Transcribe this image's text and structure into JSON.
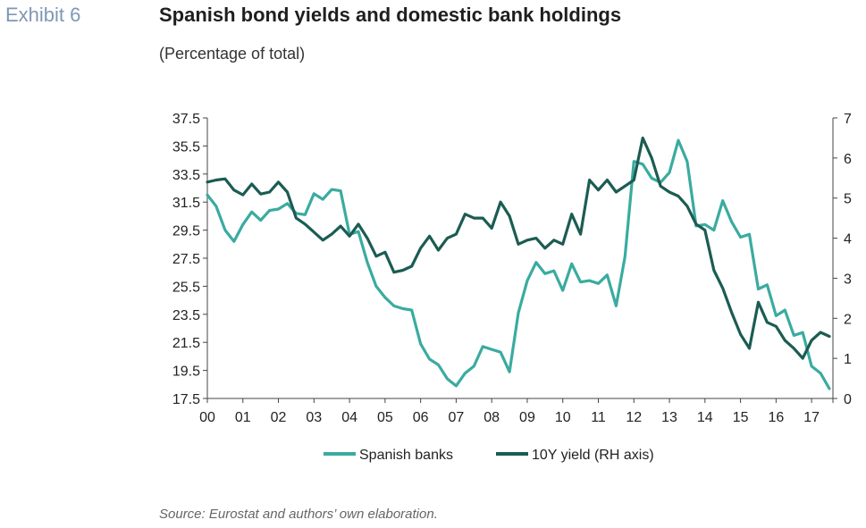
{
  "header": {
    "exhibit": "Exhibit 6",
    "title": "Spanish bond yields and domestic bank holdings",
    "subtitle": "(Percentage of total)"
  },
  "footer": {
    "source": "Source: Eurostat and authors’ own elaboration."
  },
  "chart_data": {
    "type": "line",
    "title": "Spanish bond yields and domestic bank holdings",
    "subtitle": "(Percentage of total)",
    "xlim": [
      2000,
      2017.6
    ],
    "x_ticks": [
      "00",
      "01",
      "02",
      "03",
      "04",
      "05",
      "06",
      "07",
      "08",
      "09",
      "10",
      "11",
      "12",
      "13",
      "14",
      "15",
      "16",
      "17"
    ],
    "ylim_left": [
      17.5,
      37.5
    ],
    "y_ticks_left": [
      "37.5",
      "35.5",
      "33.5",
      "31.5",
      "29.5",
      "27.5",
      "25.5",
      "23.5",
      "21.5",
      "19.5",
      "17.5"
    ],
    "ylim_right": [
      0,
      7
    ],
    "y_ticks_right": [
      "7",
      "6",
      "5",
      "4",
      "3",
      "2",
      "1",
      "0"
    ],
    "grid": false,
    "legend_position": "bottom",
    "colors": {
      "banks": "#3aaba0",
      "yield": "#1b5c53"
    },
    "series": [
      {
        "name": "Spanish banks",
        "axis": "left",
        "color": "#3aaba0",
        "x": [
          2000.0,
          2000.25,
          2000.5,
          2000.75,
          2001.0,
          2001.25,
          2001.5,
          2001.75,
          2002.0,
          2002.25,
          2002.5,
          2002.75,
          2003.0,
          2003.25,
          2003.5,
          2003.75,
          2004.0,
          2004.25,
          2004.5,
          2004.75,
          2005.0,
          2005.25,
          2005.5,
          2005.75,
          2006.0,
          2006.25,
          2006.5,
          2006.75,
          2007.0,
          2007.25,
          2007.5,
          2007.75,
          2008.0,
          2008.25,
          2008.5,
          2008.75,
          2009.0,
          2009.25,
          2009.5,
          2009.75,
          2010.0,
          2010.25,
          2010.5,
          2010.75,
          2011.0,
          2011.25,
          2011.5,
          2011.75,
          2012.0,
          2012.25,
          2012.5,
          2012.75,
          2013.0,
          2013.25,
          2013.5,
          2013.75,
          2014.0,
          2014.25,
          2014.5,
          2014.75,
          2015.0,
          2015.25,
          2015.5,
          2015.75,
          2016.0,
          2016.25,
          2016.5,
          2016.75,
          2017.0,
          2017.25,
          2017.5
        ],
        "values": [
          32.0,
          31.2,
          29.5,
          28.7,
          29.9,
          30.8,
          30.2,
          30.9,
          31.0,
          31.4,
          30.7,
          30.6,
          32.1,
          31.7,
          32.4,
          32.3,
          29.2,
          29.4,
          27.2,
          25.5,
          24.7,
          24.1,
          23.9,
          23.8,
          21.4,
          20.3,
          19.9,
          18.9,
          18.4,
          19.3,
          19.8,
          21.2,
          21.0,
          20.8,
          19.4,
          23.6,
          25.9,
          27.2,
          26.4,
          26.6,
          25.2,
          27.1,
          25.8,
          25.9,
          25.7,
          26.3,
          24.1,
          27.6,
          34.4,
          34.2,
          33.2,
          32.9,
          33.6,
          35.9,
          34.4,
          29.8,
          29.9,
          29.5,
          31.6,
          30.1,
          29.0,
          29.2,
          25.3,
          25.6,
          23.4,
          23.8,
          22.0,
          22.2,
          19.8,
          19.3,
          18.2
        ]
      },
      {
        "name": "10Y yield (RH axis)",
        "axis": "right",
        "color": "#1b5c53",
        "x": [
          2000.0,
          2000.25,
          2000.5,
          2000.75,
          2001.0,
          2001.25,
          2001.5,
          2001.75,
          2002.0,
          2002.25,
          2002.5,
          2002.75,
          2003.0,
          2003.25,
          2003.5,
          2003.75,
          2004.0,
          2004.25,
          2004.5,
          2004.75,
          2005.0,
          2005.25,
          2005.5,
          2005.75,
          2006.0,
          2006.25,
          2006.5,
          2006.75,
          2007.0,
          2007.25,
          2007.5,
          2007.75,
          2008.0,
          2008.25,
          2008.5,
          2008.75,
          2009.0,
          2009.25,
          2009.5,
          2009.75,
          2010.0,
          2010.25,
          2010.5,
          2010.75,
          2011.0,
          2011.25,
          2011.5,
          2011.75,
          2012.0,
          2012.25,
          2012.5,
          2012.75,
          2013.0,
          2013.25,
          2013.5,
          2013.75,
          2014.0,
          2014.25,
          2014.5,
          2014.75,
          2015.0,
          2015.25,
          2015.5,
          2015.75,
          2016.0,
          2016.25,
          2016.5,
          2016.75,
          2017.0,
          2017.25,
          2017.5
        ],
        "values": [
          5.4,
          5.45,
          5.48,
          5.2,
          5.08,
          5.35,
          5.1,
          5.15,
          5.4,
          5.15,
          4.5,
          4.35,
          4.15,
          3.95,
          4.1,
          4.3,
          4.05,
          4.35,
          4.0,
          3.55,
          3.65,
          3.15,
          3.2,
          3.3,
          3.75,
          4.05,
          3.7,
          4.0,
          4.1,
          4.6,
          4.5,
          4.5,
          4.25,
          4.9,
          4.55,
          3.85,
          3.95,
          4.0,
          3.75,
          3.95,
          3.85,
          4.6,
          4.1,
          5.45,
          5.2,
          5.45,
          5.15,
          5.3,
          5.45,
          6.5,
          6.0,
          5.3,
          5.15,
          5.05,
          4.8,
          4.35,
          4.2,
          3.2,
          2.75,
          2.15,
          1.6,
          1.25,
          2.4,
          1.9,
          1.8,
          1.45,
          1.25,
          1.0,
          1.45,
          1.65,
          1.55
        ]
      }
    ]
  }
}
